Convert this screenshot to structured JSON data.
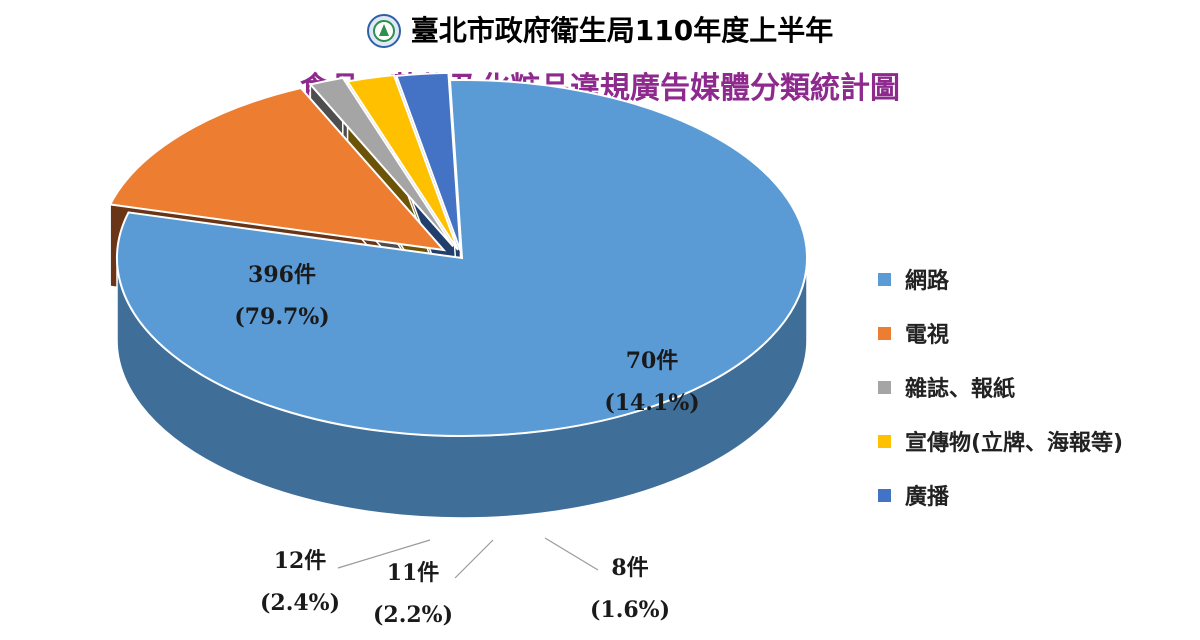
{
  "header": {
    "title_line1": "臺北市政府衛生局110年度上半年",
    "logo": "seal-icon"
  },
  "chart_data": {
    "type": "pie",
    "title": "食品、藥物及化粧品違規廣告媒體分類統計圖",
    "unit": "件",
    "legend_position": "right",
    "slices": [
      {
        "name": "網路",
        "value": 396,
        "percent_label": "(79.7%)",
        "count_label": "396件",
        "color": "#5b9bd5",
        "side": "#3f6f99"
      },
      {
        "name": "電視",
        "value": 70,
        "percent_label": "(14.1%)",
        "count_label": "70件",
        "color": "#ed7d31",
        "side": "#6a3517"
      },
      {
        "name": "雜誌、報紙",
        "value": 8,
        "percent_label": "(1.6%)",
        "count_label": "8件",
        "color": "#a5a5a5",
        "side": "#4e4e4e"
      },
      {
        "name": "宣傳物(立牌、海報等)",
        "value": 11,
        "percent_label": "(2.2%)",
        "count_label": "11件",
        "color": "#ffc000",
        "side": "#6b5308"
      },
      {
        "name": "廣播",
        "value": 12,
        "percent_label": "(2.4%)",
        "count_label": "12件",
        "color": "#4472c4",
        "side": "#213e6d"
      }
    ]
  }
}
